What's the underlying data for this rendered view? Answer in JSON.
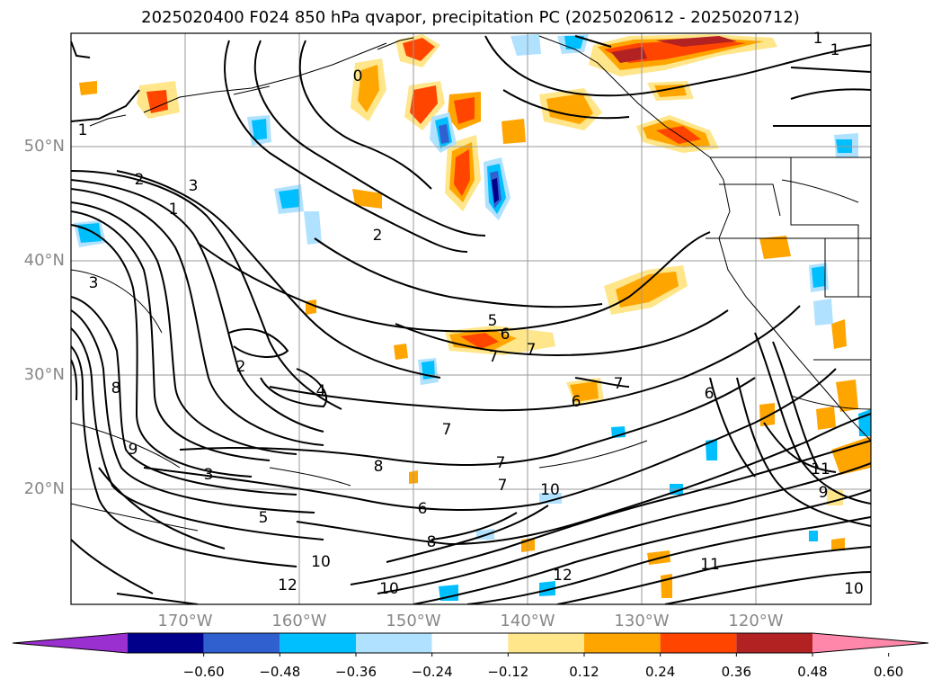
{
  "title": "2025020400 F024 850 hPa qvapor, precipitation PC (2025020612 - 2025020712)",
  "map": {
    "lat_labels": [
      "50°N",
      "40°N",
      "30°N",
      "20°N"
    ],
    "lon_labels": [
      "170°W",
      "160°W",
      "150°W",
      "140°W",
      "130°W",
      "120°W"
    ],
    "lat_range": [
      10,
      60
    ],
    "lon_range": [
      -180,
      -110
    ],
    "gridlines": true
  },
  "colorbar": {
    "ticks": [
      "−0.60",
      "−0.48",
      "−0.36",
      "−0.24",
      "−0.12",
      "0.12",
      "0.24",
      "0.36",
      "0.48",
      "0.60"
    ],
    "colors": [
      "#9b30d0",
      "#00008b",
      "#3060d0",
      "#00bfff",
      "#b0e2ff",
      "#ffffff",
      "#ffe68a",
      "#ffa500",
      "#ff4500",
      "#b22222",
      "#ff88aa"
    ]
  },
  "contour_labels": [
    "1",
    "1",
    "0",
    "1",
    "2",
    "3",
    "1",
    "2",
    "3",
    "3",
    "2",
    "4",
    "5",
    "6",
    "7",
    "7",
    "7",
    "7",
    "6",
    "7",
    "6",
    "8",
    "9",
    "8",
    "10",
    "10",
    "11",
    "11",
    "12",
    "10",
    "5",
    "6",
    "7",
    "8",
    "9",
    "10",
    "12"
  ]
}
